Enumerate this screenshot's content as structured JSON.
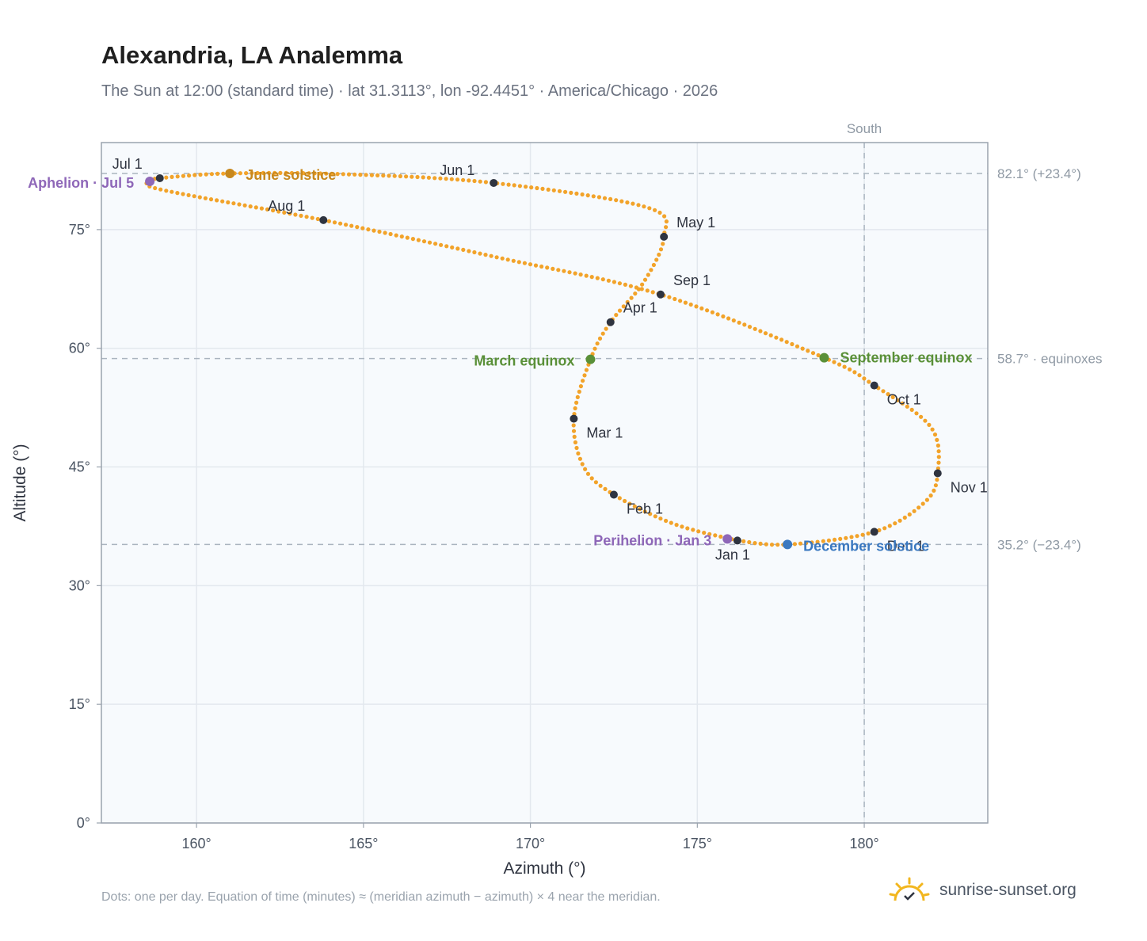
{
  "title": "Alexandria, LA Analemma",
  "subtitle": "The Sun at 12:00 (standard time) · lat 31.3113°, lon -92.4451° · America/Chicago · 2026",
  "footer": "Dots: one per day. Equation of time (minutes) ≈ (meridian azimuth − azimuth) × 4 near the meridian.",
  "brand": "sunrise-sunset.org",
  "colors": {
    "path": "#f2a32a",
    "month_dot": "#2f3440",
    "aphelion": "#8e67b8",
    "perihelion": "#8e67b8",
    "june_solstice": "#c7881d",
    "december_solstice": "#3a78c0",
    "equinox": "#5a9038",
    "ref_line": "#aab4bf",
    "plot_bg": "#f7fafd",
    "frame": "#9aa3ae",
    "grid": "#e3e8ee"
  },
  "chart_data": {
    "type": "scatter",
    "xlabel": "Azimuth (°)",
    "ylabel": "Altitude (°)",
    "xlim": [
      157.15,
      183.7
    ],
    "ylim": [
      0,
      86
    ],
    "x_ticks": [
      160,
      165,
      170,
      175,
      180
    ],
    "x_tick_labels": [
      "160°",
      "165°",
      "170°",
      "175°",
      "180°"
    ],
    "y_ticks": [
      0,
      15,
      30,
      45,
      60,
      75
    ],
    "y_tick_labels": [
      "0°",
      "15°",
      "30°",
      "45°",
      "60°",
      "75°"
    ],
    "grid": true,
    "south_line": {
      "x": 180,
      "label": "South"
    },
    "reference_lines": [
      {
        "y": 82.1,
        "label": "82.1° (+23.4°)"
      },
      {
        "y": 58.7,
        "label": "58.7° · equinoxes"
      },
      {
        "y": 35.2,
        "label": "35.2° (−23.4°)"
      }
    ],
    "month_points": [
      {
        "label": "Jan 1",
        "x": 176.2,
        "y": 35.7
      },
      {
        "label": "Feb 1",
        "x": 172.5,
        "y": 41.5
      },
      {
        "label": "Mar 1",
        "x": 171.3,
        "y": 51.1
      },
      {
        "label": "Apr 1",
        "x": 172.4,
        "y": 63.3
      },
      {
        "label": "May 1",
        "x": 174.0,
        "y": 74.1
      },
      {
        "label": "Jun 1",
        "x": 168.9,
        "y": 80.9
      },
      {
        "label": "Jul 1",
        "x": 158.9,
        "y": 81.5
      },
      {
        "label": "Aug 1",
        "x": 163.8,
        "y": 76.2
      },
      {
        "label": "Sep 1",
        "x": 173.9,
        "y": 66.8
      },
      {
        "label": "Oct 1",
        "x": 180.3,
        "y": 55.3
      },
      {
        "label": "Nov 1",
        "x": 182.2,
        "y": 44.2
      },
      {
        "label": "Dec 1",
        "x": 180.3,
        "y": 36.8
      }
    ],
    "events": [
      {
        "label": "June solstice",
        "x": 161.0,
        "y": 82.1,
        "color": "#c7881d"
      },
      {
        "label": "Aphelion · Jul 5",
        "x": 158.6,
        "y": 81.1,
        "color": "#8e67b8"
      },
      {
        "label": "March equinox",
        "x": 171.8,
        "y": 58.6,
        "color": "#5a9038"
      },
      {
        "label": "September equinox",
        "x": 178.8,
        "y": 58.8,
        "color": "#5a9038"
      },
      {
        "label": "Perihelion · Jan 3",
        "x": 175.9,
        "y": 35.9,
        "color": "#8e67b8"
      },
      {
        "label": "December solstice",
        "x": 177.7,
        "y": 35.2,
        "color": "#3a78c0"
      }
    ],
    "path_keypoints": [
      [
        176.2,
        35.7
      ],
      [
        174.3,
        37.8
      ],
      [
        172.5,
        41.5
      ],
      [
        171.6,
        45.0
      ],
      [
        171.3,
        51.1
      ],
      [
        171.8,
        58.6
      ],
      [
        172.4,
        63.3
      ],
      [
        173.4,
        68.4
      ],
      [
        174.0,
        74.1
      ],
      [
        173.5,
        77.8
      ],
      [
        168.9,
        80.9
      ],
      [
        164.5,
        82.0
      ],
      [
        161.0,
        82.1
      ],
      [
        158.9,
        81.5
      ],
      [
        158.6,
        81.1
      ],
      [
        159.0,
        80.0
      ],
      [
        163.8,
        76.2
      ],
      [
        169.0,
        71.5
      ],
      [
        173.9,
        66.8
      ],
      [
        178.8,
        58.8
      ],
      [
        180.3,
        55.3
      ],
      [
        182.0,
        50.0
      ],
      [
        182.2,
        44.2
      ],
      [
        181.8,
        40.5
      ],
      [
        180.3,
        36.8
      ],
      [
        177.7,
        35.2
      ],
      [
        176.2,
        35.7
      ]
    ]
  }
}
